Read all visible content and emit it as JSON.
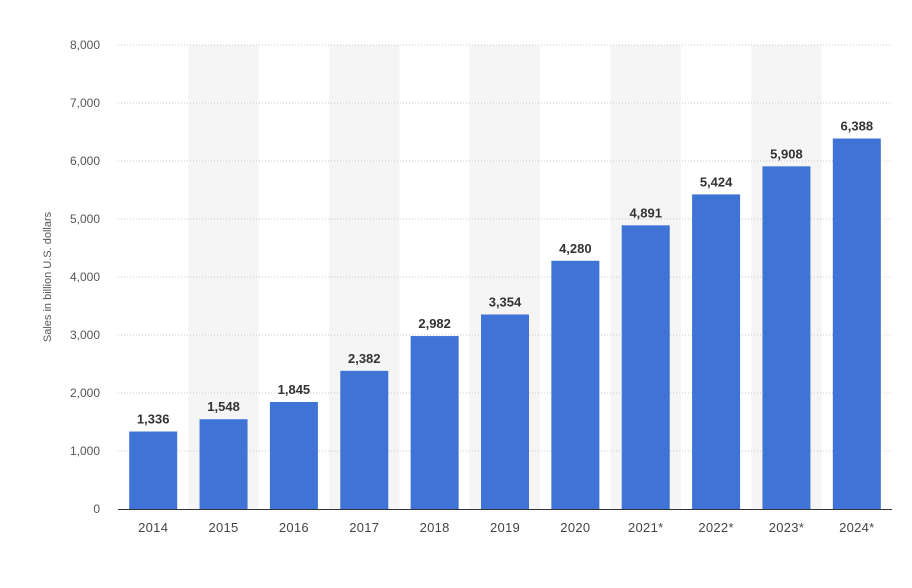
{
  "colors": {
    "bar": "#3f74d6",
    "band": "#f5f5f5",
    "grid": "#c8c8c8",
    "axis": "#333333"
  },
  "chart_data": {
    "type": "bar",
    "title": "",
    "xlabel": "",
    "ylabel": "Sales in billion U.S. dollars",
    "categories": [
      "2014",
      "2015",
      "2016",
      "2017",
      "2018",
      "2019",
      "2020",
      "2021*",
      "2022*",
      "2023*",
      "2024*"
    ],
    "values": [
      1336,
      1548,
      1845,
      2382,
      2982,
      3354,
      4280,
      4891,
      5424,
      5908,
      6388
    ],
    "value_labels": [
      "1,336",
      "1,548",
      "1,845",
      "2,382",
      "2,982",
      "3,354",
      "4,280",
      "4,891",
      "5,424",
      "5,908",
      "6,388"
    ],
    "ylim": [
      0,
      8000
    ],
    "yticks": [
      0,
      1000,
      2000,
      3000,
      4000,
      5000,
      6000,
      7000,
      8000
    ],
    "ytick_labels": [
      "0",
      "1,000",
      "2,000",
      "3,000",
      "4,000",
      "5,000",
      "6,000",
      "7,000",
      "8,000"
    ],
    "grid": true,
    "legend": "none"
  }
}
